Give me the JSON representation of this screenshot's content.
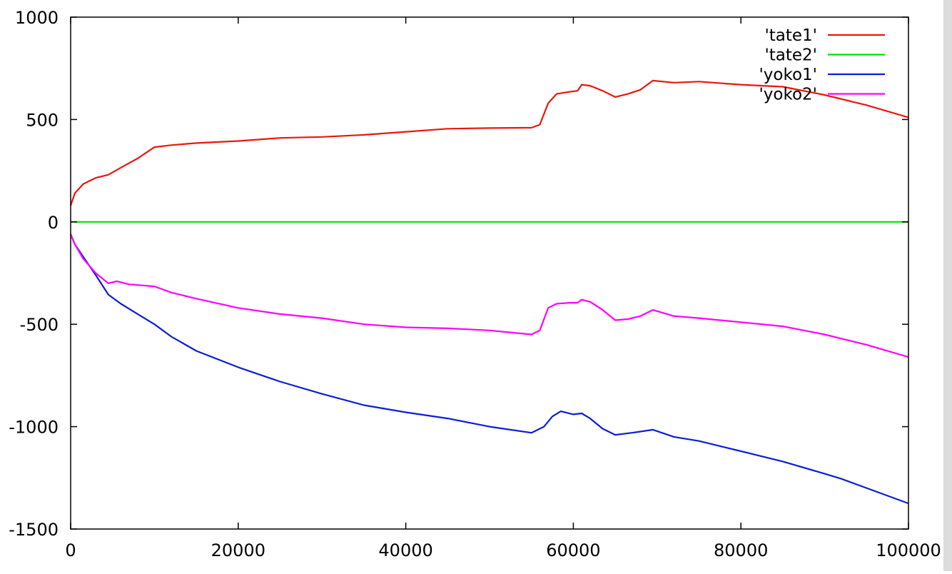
{
  "colors": {
    "background": "#ffffff",
    "axis": "#000000",
    "right_strip": "#dcdcdc"
  },
  "chart_data": {
    "type": "line",
    "title": "",
    "xlabel": "",
    "ylabel": "",
    "xlim": [
      0,
      100000
    ],
    "ylim": [
      -1500,
      1000
    ],
    "grid": false,
    "legend_position": "top-right",
    "x_ticks": [
      {
        "value": 0,
        "label": "0"
      },
      {
        "value": 20000,
        "label": "20000"
      },
      {
        "value": 40000,
        "label": "40000"
      },
      {
        "value": 60000,
        "label": "60000"
      },
      {
        "value": 80000,
        "label": "80000"
      },
      {
        "value": 100000,
        "label": "100000"
      }
    ],
    "y_ticks": [
      {
        "value": 1000,
        "label": "1000"
      },
      {
        "value": 500,
        "label": "500"
      },
      {
        "value": 0,
        "label": "0"
      },
      {
        "value": -500,
        "label": "-500"
      },
      {
        "value": -1000,
        "label": "-1000"
      },
      {
        "value": -1500,
        "label": "-1500"
      }
    ],
    "series": [
      {
        "name": "'tate1'",
        "color": "#e8170d",
        "points": [
          [
            0,
            80
          ],
          [
            500,
            140
          ],
          [
            1500,
            185
          ],
          [
            3000,
            215
          ],
          [
            4500,
            230
          ],
          [
            6000,
            265
          ],
          [
            8000,
            310
          ],
          [
            10000,
            365
          ],
          [
            12000,
            375
          ],
          [
            15000,
            385
          ],
          [
            20000,
            395
          ],
          [
            25000,
            410
          ],
          [
            30000,
            415
          ],
          [
            35000,
            425
          ],
          [
            40000,
            440
          ],
          [
            45000,
            455
          ],
          [
            50000,
            458
          ],
          [
            55000,
            460
          ],
          [
            56000,
            475
          ],
          [
            57000,
            580
          ],
          [
            58000,
            625
          ],
          [
            59500,
            635
          ],
          [
            60500,
            640
          ],
          [
            61000,
            670
          ],
          [
            62000,
            665
          ],
          [
            63500,
            640
          ],
          [
            65000,
            610
          ],
          [
            66500,
            625
          ],
          [
            68000,
            645
          ],
          [
            69500,
            690
          ],
          [
            72000,
            680
          ],
          [
            75000,
            685
          ],
          [
            80000,
            670
          ],
          [
            85000,
            660
          ],
          [
            90000,
            620
          ],
          [
            95000,
            570
          ],
          [
            100000,
            510
          ]
        ]
      },
      {
        "name": "'tate2'",
        "color": "#00e000",
        "points": [
          [
            0,
            0
          ],
          [
            100000,
            0
          ]
        ]
      },
      {
        "name": "'yoko1'",
        "color": "#0a1ed8",
        "points": [
          [
            0,
            -60
          ],
          [
            500,
            -110
          ],
          [
            1500,
            -170
          ],
          [
            3000,
            -260
          ],
          [
            4500,
            -355
          ],
          [
            6000,
            -400
          ],
          [
            8000,
            -450
          ],
          [
            10000,
            -500
          ],
          [
            12000,
            -560
          ],
          [
            15000,
            -630
          ],
          [
            20000,
            -710
          ],
          [
            25000,
            -780
          ],
          [
            30000,
            -840
          ],
          [
            35000,
            -895
          ],
          [
            40000,
            -930
          ],
          [
            45000,
            -960
          ],
          [
            50000,
            -1000
          ],
          [
            55000,
            -1030
          ],
          [
            56500,
            -1000
          ],
          [
            57500,
            -950
          ],
          [
            58500,
            -925
          ],
          [
            60000,
            -940
          ],
          [
            61000,
            -935
          ],
          [
            62000,
            -960
          ],
          [
            63500,
            -1010
          ],
          [
            65000,
            -1040
          ],
          [
            67000,
            -1030
          ],
          [
            69500,
            -1015
          ],
          [
            72000,
            -1050
          ],
          [
            75000,
            -1070
          ],
          [
            80000,
            -1120
          ],
          [
            85000,
            -1170
          ],
          [
            90000,
            -1230
          ],
          [
            92000,
            -1255
          ],
          [
            95000,
            -1300
          ],
          [
            100000,
            -1375
          ]
        ]
      },
      {
        "name": "'yoko2'",
        "color": "#ff00ff",
        "points": [
          [
            0,
            -60
          ],
          [
            500,
            -110
          ],
          [
            1500,
            -180
          ],
          [
            3000,
            -250
          ],
          [
            4500,
            -300
          ],
          [
            5500,
            -290
          ],
          [
            7000,
            -305
          ],
          [
            10000,
            -315
          ],
          [
            12000,
            -345
          ],
          [
            15000,
            -375
          ],
          [
            20000,
            -420
          ],
          [
            25000,
            -450
          ],
          [
            30000,
            -470
          ],
          [
            35000,
            -500
          ],
          [
            40000,
            -515
          ],
          [
            45000,
            -520
          ],
          [
            50000,
            -530
          ],
          [
            55000,
            -550
          ],
          [
            56000,
            -530
          ],
          [
            57000,
            -420
          ],
          [
            58000,
            -400
          ],
          [
            59500,
            -395
          ],
          [
            60500,
            -395
          ],
          [
            61000,
            -380
          ],
          [
            62000,
            -390
          ],
          [
            63500,
            -430
          ],
          [
            65000,
            -480
          ],
          [
            66500,
            -475
          ],
          [
            68000,
            -460
          ],
          [
            69500,
            -430
          ],
          [
            72000,
            -460
          ],
          [
            75000,
            -470
          ],
          [
            80000,
            -490
          ],
          [
            85000,
            -510
          ],
          [
            90000,
            -550
          ],
          [
            92000,
            -570
          ],
          [
            95000,
            -600
          ],
          [
            100000,
            -660
          ]
        ]
      }
    ]
  }
}
